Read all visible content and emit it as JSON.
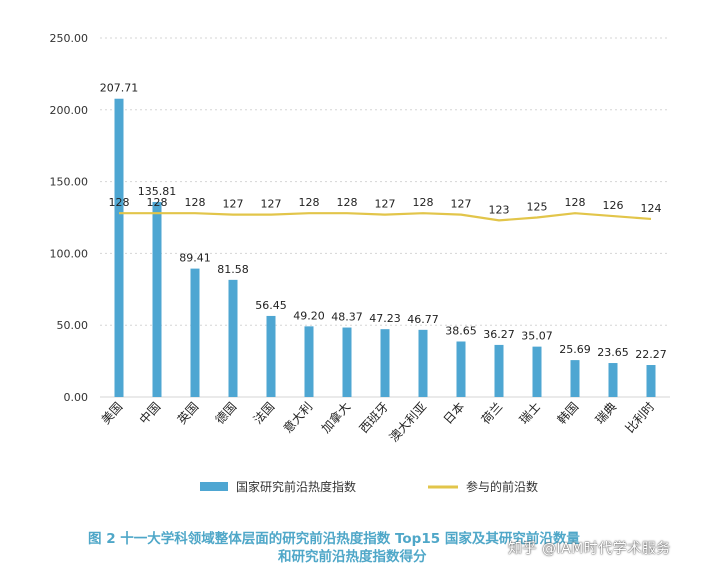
{
  "chart_data": {
    "type": "bar",
    "categories": [
      "美国",
      "中国",
      "英国",
      "德国",
      "法国",
      "意大利",
      "加拿大",
      "西班牙",
      "澳大利亚",
      "日本",
      "荷兰",
      "瑞士",
      "韩国",
      "瑞典",
      "比利时"
    ],
    "series": [
      {
        "name": "国家研究前沿热度指数",
        "type": "bar",
        "color": "#4ea6d2",
        "values": [
          207.71,
          135.81,
          89.41,
          81.58,
          56.45,
          49.2,
          48.37,
          47.23,
          46.77,
          38.65,
          36.27,
          35.07,
          25.69,
          23.65,
          22.27
        ],
        "labels": [
          "207.71",
          "135.81",
          "89.41",
          "81.58",
          "56.45",
          "49.20",
          "48.37",
          "47.23",
          "46.77",
          "38.65",
          "36.27",
          "35.07",
          "25.69",
          "23.65",
          "22.27"
        ]
      },
      {
        "name": "参与的前沿数",
        "type": "line",
        "color": "#e2c54a",
        "values": [
          128,
          128,
          128,
          127,
          127,
          128,
          128,
          127,
          128,
          127,
          123,
          125,
          128,
          126,
          124
        ]
      }
    ],
    "ylim": [
      0,
      250
    ],
    "yticks": [
      "0.00",
      "50.00",
      "100.00",
      "150.00",
      "200.00",
      "250.00"
    ],
    "grid": "horizontal dotted",
    "legend": "bottom"
  },
  "caption": {
    "line1": "图 2   十一大学科领域整体层面的研究前沿热度指数 Top15 国家及其研究前沿数量",
    "line2": "和研究前沿热度指数得分"
  },
  "watermark": "知乎 @IAM时代学术服务"
}
